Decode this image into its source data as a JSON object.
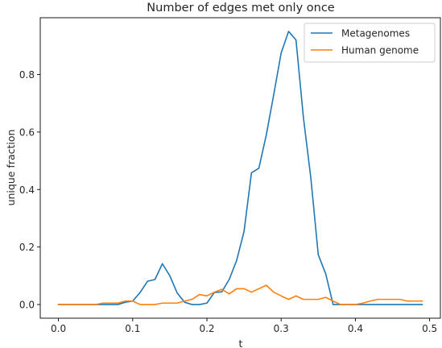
{
  "chart_data": {
    "type": "line",
    "title": "Number of edges met only once",
    "xlabel": "t",
    "ylabel": "unique fraction",
    "xlim": [
      -0.0245,
      0.5145
    ],
    "ylim": [
      -0.0475,
      0.9975
    ],
    "xticks": [
      0.0,
      0.1,
      0.2,
      0.3,
      0.4,
      0.5
    ],
    "xtick_labels": [
      "0.0",
      "0.1",
      "0.2",
      "0.3",
      "0.4",
      "0.5"
    ],
    "yticks": [
      0.0,
      0.2,
      0.4,
      0.6,
      0.8
    ],
    "ytick_labels": [
      "0.0",
      "0.2",
      "0.4",
      "0.6",
      "0.8"
    ],
    "grid": false,
    "legend_position": "top-right",
    "x": [
      0.0,
      0.01,
      0.02,
      0.03,
      0.04,
      0.05,
      0.06,
      0.07,
      0.08,
      0.09,
      0.1,
      0.11,
      0.12,
      0.13,
      0.14,
      0.15,
      0.16,
      0.17,
      0.18,
      0.19,
      0.2,
      0.21,
      0.22,
      0.23,
      0.24,
      0.25,
      0.26,
      0.27,
      0.28,
      0.29,
      0.3,
      0.31,
      0.32,
      0.33,
      0.34,
      0.35,
      0.36,
      0.37,
      0.38,
      0.39,
      0.4,
      0.41,
      0.42,
      0.43,
      0.44,
      0.45,
      0.46,
      0.47,
      0.48,
      0.49
    ],
    "series": [
      {
        "name": "Metagenomes",
        "color": "#1f77b4",
        "values": [
          0.0,
          0.0,
          0.0,
          0.0,
          0.0,
          0.0,
          0.0,
          0.0,
          0.0,
          0.008,
          0.012,
          0.042,
          0.081,
          0.087,
          0.142,
          0.1,
          0.04,
          0.008,
          0.0,
          0.0,
          0.005,
          0.042,
          0.044,
          0.087,
          0.153,
          0.254,
          0.458,
          0.474,
          0.59,
          0.73,
          0.875,
          0.95,
          0.92,
          0.65,
          0.44,
          0.173,
          0.107,
          0.0,
          0.0,
          0.0,
          0.0,
          0.0,
          0.0,
          0.0,
          0.0,
          0.0,
          0.0,
          0.0,
          0.0,
          0.0
        ]
      },
      {
        "name": "Human genome",
        "color": "#ff7f0e",
        "values": [
          0.0,
          0.0,
          0.0,
          0.0,
          0.0,
          0.0,
          0.005,
          0.005,
          0.005,
          0.012,
          0.012,
          0.0,
          0.0,
          0.0,
          0.005,
          0.005,
          0.005,
          0.012,
          0.018,
          0.035,
          0.03,
          0.043,
          0.053,
          0.037,
          0.055,
          0.055,
          0.043,
          0.055,
          0.067,
          0.043,
          0.03,
          0.018,
          0.03,
          0.018,
          0.018,
          0.018,
          0.025,
          0.012,
          0.0,
          0.0,
          0.0,
          0.005,
          0.012,
          0.018,
          0.018,
          0.018,
          0.018,
          0.012,
          0.012,
          0.012
        ]
      }
    ]
  }
}
